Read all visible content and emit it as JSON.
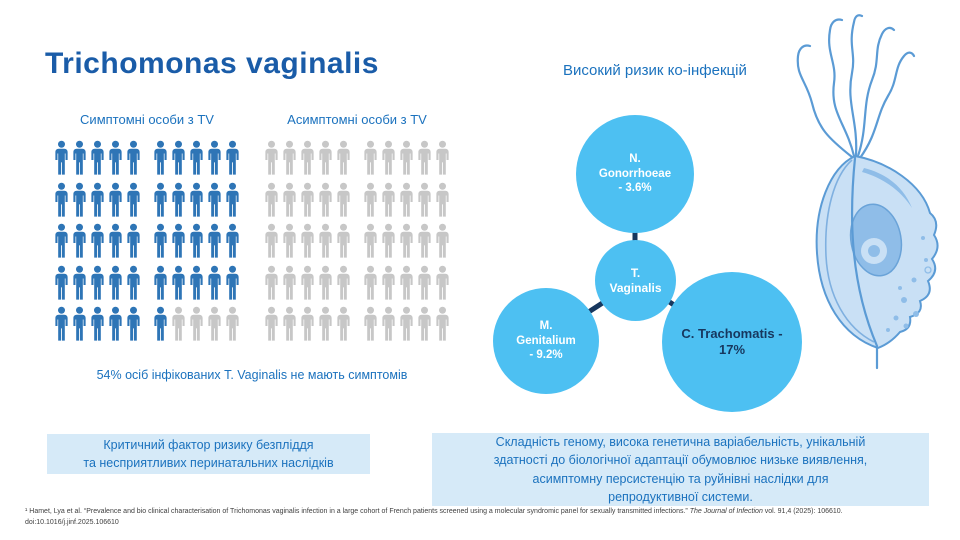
{
  "title": "Trichomonas vaginalis",
  "chart_data": [
    {
      "type": "pictogram",
      "rows": 5,
      "cols": 10,
      "groups": [
        {
          "label": "Симптомні особи з TV",
          "icons_total": 50,
          "icons_filled": 46
        },
        {
          "label": "Асимптомні особи з TV",
          "icons_total": 50,
          "icons_filled": 0
        }
      ],
      "values_pct": {
        "symptomatic": 46,
        "asymptomatic": 54
      },
      "caption": "54% осіб інфікованих T. Vaginalis не мають симптомів",
      "filled_color": "#2E75B6",
      "empty_color": "#C7C7C7"
    },
    {
      "type": "bubble",
      "title": "Високий ризик ко-інфекцій",
      "center": {
        "label": "T. Vaginalis",
        "lines": [
          "T.",
          "Vaginalis"
        ]
      },
      "nodes": [
        {
          "label": "N. Gonorrhoeae",
          "value_pct": 3.6,
          "lines": [
            "N.",
            "Gonorrhoeae",
            "- 3.6%"
          ]
        },
        {
          "label": "M. Genitalium",
          "value_pct": 9.2,
          "lines": [
            "M.",
            "Genitalium",
            "- 9.2%"
          ]
        },
        {
          "label": "C. Trachomatis",
          "value_pct": 17,
          "lines": [
            "C. Trachomatis -",
            "17%"
          ]
        }
      ],
      "bubble_color": "#4DC0F2",
      "connector_color": "#17375E"
    }
  ],
  "callouts": {
    "left": "Критичний фактор ризику безпліддя\nта несприятливих перинатальних наслідків",
    "right": "Складність геному, висока генетична варіабельність, унікальній\nздатності до біологічної адаптації обумовлює низьке виявлення,\nасимптомну персистенцію та руйнівні наслідки для\nрепродуктивної системи."
  },
  "footnote": {
    "text_before_journal": "¹ Hamet, Lya et al. “Prevalence and bio clinical characterisation of Trichomonas vaginalis infection in a large cohort of French patients screened using a molecular syndromic panel for sexually transmitted infections.” ",
    "journal": "The Journal of Infection",
    "text_after_journal": " vol. 91,4 (2025): 106610.",
    "doi_line": "doi:10.1016/j.jinf.2025.106610"
  },
  "colors": {
    "title": "#1A5CA8",
    "accent_text": "#1B72BE",
    "icon_filled": "#2E75B6",
    "icon_empty": "#C7C7C7",
    "bubble": "#4DC0F2",
    "navy": "#17375E",
    "callout_bg": "#D6EAF8",
    "illustration_stroke": "#5B9BD5"
  }
}
